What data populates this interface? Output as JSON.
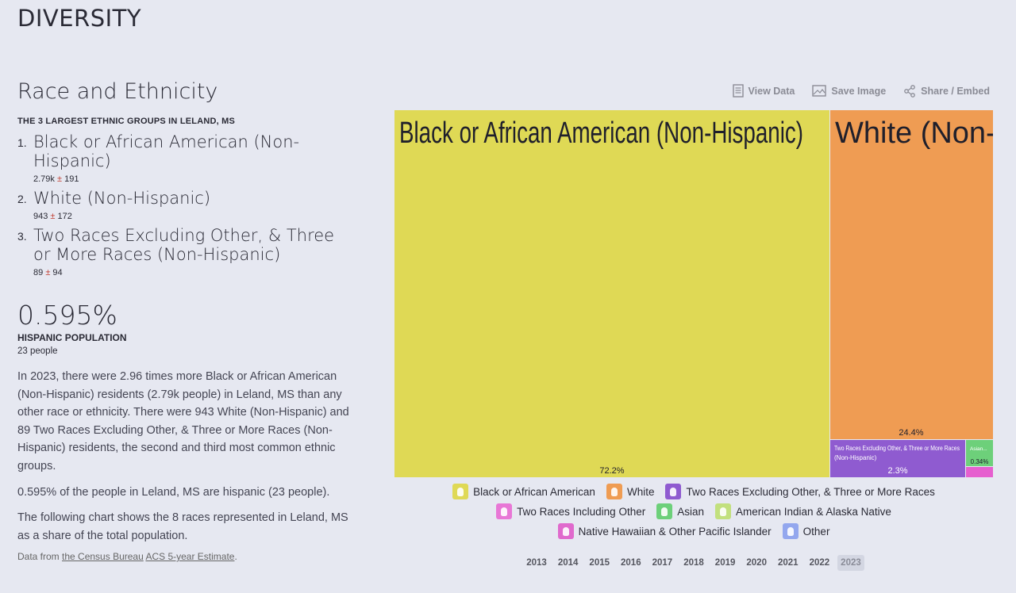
{
  "section_title": "DIVERSITY",
  "topic_title": "Race and Ethnicity",
  "stat_heading": "THE 3 LARGEST ETHNIC GROUPS IN LELAND, MS",
  "groups": [
    {
      "num": "1.",
      "name": "Black or African American (Non-Hispanic)",
      "value": "2.79k",
      "pm": "±",
      "moe": "191"
    },
    {
      "num": "2.",
      "name": "White (Non-Hispanic)",
      "value": "943",
      "pm": "±",
      "moe": "172"
    },
    {
      "num": "3.",
      "name": "Two Races Excluding Other, & Three or More Races (Non-Hispanic)",
      "value": "89",
      "pm": "±",
      "moe": "94"
    }
  ],
  "hispanic": {
    "value": "0.595%",
    "label": "HISPANIC POPULATION",
    "sub": "23 people"
  },
  "paragraphs": [
    "In 2023, there were 2.96 times more Black or African American (Non-Hispanic) residents (2.79k people) in Leland, MS than any other race or ethnicity. There were 943 White (Non-Hispanic) and 89 Two Races Excluding Other, & Three or More Races (Non-Hispanic) residents, the second and third most common ethnic groups.",
    "0.595% of the people in Leland, MS are hispanic (23 people).",
    "The following chart shows the 8 races represented in Leland, MS as a share of the total population."
  ],
  "source": {
    "prefix": "Data from",
    "org": "the Census Bureau",
    "dataset": "ACS 5-year Estimate",
    "suffix": "."
  },
  "toolbar": {
    "view_data": "View Data",
    "save_image": "Save Image",
    "share": "Share / Embed"
  },
  "chart_data": {
    "type": "treemap",
    "series": [
      {
        "name": "Black or African American (Non-Hispanic)",
        "share_pct": 72.2,
        "label": "72.2%",
        "color": "#dfd955"
      },
      {
        "name": "White (Non-Hispanic)",
        "share_pct": 24.4,
        "label": "24.4%",
        "color": "#ef9c53"
      },
      {
        "name": "Two Races Excluding Other, & Three or More Races (Non-Hispanic)",
        "share_pct": 2.3,
        "label": "2.3%",
        "color": "#8f5bd0"
      },
      {
        "name": "Asian...",
        "share_pct": 0.34,
        "label": "0.34%",
        "color": "#6dd07a"
      },
      {
        "name": "",
        "share_pct": null,
        "label": "",
        "color": "#e65fcf"
      }
    ]
  },
  "legend": [
    {
      "label": "Black or African American",
      "color": "#dfd955"
    },
    {
      "label": "White",
      "color": "#ef9c53"
    },
    {
      "label": "Two Races Excluding Other, & Three or More Races",
      "color": "#8f5bd0"
    },
    {
      "label": "Two Races Including Other",
      "color": "#e877d6"
    },
    {
      "label": "Asian",
      "color": "#6dd07a"
    },
    {
      "label": "American Indian & Alaska Native",
      "color": "#c2e07e"
    },
    {
      "label": "Native Hawaiian & Other Pacific Islander",
      "color": "#e06acd"
    },
    {
      "label": "Other",
      "color": "#93a7ee"
    }
  ],
  "years": [
    "2013",
    "2014",
    "2015",
    "2016",
    "2017",
    "2018",
    "2019",
    "2020",
    "2021",
    "2022",
    "2023"
  ],
  "active_year": "2023"
}
